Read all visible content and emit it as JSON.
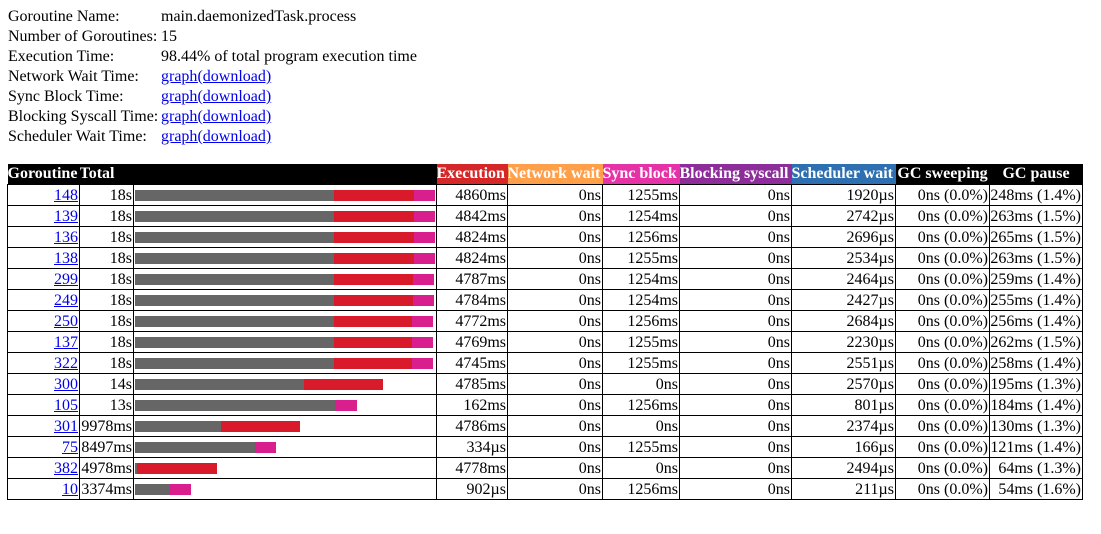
{
  "summary": {
    "rows": [
      {
        "label": "Goroutine Name:",
        "value": "main.daemonizedTask.process"
      },
      {
        "label": "Number of Goroutines:",
        "value": "15"
      },
      {
        "label": "Execution Time:",
        "value": "98.44% of total program execution time"
      },
      {
        "label": "Network Wait Time:",
        "link": "graph",
        "link2": "(download)"
      },
      {
        "label": "Sync Block Time:",
        "link": "graph",
        "link2": "(download)"
      },
      {
        "label": "Blocking Syscall Time:",
        "link": "graph",
        "link2": "(download)"
      },
      {
        "label": "Scheduler Wait Time:",
        "link": "graph",
        "link2": "(download)"
      }
    ]
  },
  "colors": {
    "header_bg": "#000000",
    "execution": "#d62728",
    "network_wait": "#ff9f4a",
    "sync_block": "#e532a7",
    "blocking_syscall": "#8c2d9a",
    "scheduler_wait": "#2d6fb0",
    "bar_gray": "#666666",
    "bar_red": "#d91a2b",
    "bar_pink": "#d91f8e"
  },
  "table": {
    "headers": {
      "goroutine": "Goroutine",
      "total": "Total",
      "execution": "Execution",
      "network_wait": "Network wait",
      "sync_block": "Sync block",
      "blocking_syscall": "Blocking syscall",
      "scheduler_wait": "Scheduler wait",
      "gc_sweeping": "GC sweeping",
      "gc_pause": "GC pause"
    },
    "rows": [
      {
        "id": "148",
        "total": "18s",
        "execution": "4860ms",
        "network": "0ns",
        "sync": "1255ms",
        "syscall": "0ns",
        "sched": "1920µs",
        "sweep": "0ns (0.0%)",
        "pause": "248ms (1.4%)",
        "total_frac": 1.0,
        "exec_frac": 0.267,
        "sync_frac": 0.069
      },
      {
        "id": "139",
        "total": "18s",
        "execution": "4842ms",
        "network": "0ns",
        "sync": "1254ms",
        "syscall": "0ns",
        "sched": "2742µs",
        "sweep": "0ns (0.0%)",
        "pause": "263ms (1.5%)",
        "total_frac": 1.0,
        "exec_frac": 0.267,
        "sync_frac": 0.069
      },
      {
        "id": "136",
        "total": "18s",
        "execution": "4824ms",
        "network": "0ns",
        "sync": "1256ms",
        "syscall": "0ns",
        "sched": "2696µs",
        "sweep": "0ns (0.0%)",
        "pause": "265ms (1.5%)",
        "total_frac": 1.0,
        "exec_frac": 0.267,
        "sync_frac": 0.069
      },
      {
        "id": "138",
        "total": "18s",
        "execution": "4824ms",
        "network": "0ns",
        "sync": "1255ms",
        "syscall": "0ns",
        "sched": "2534µs",
        "sweep": "0ns (0.0%)",
        "pause": "263ms (1.5%)",
        "total_frac": 1.0,
        "exec_frac": 0.267,
        "sync_frac": 0.069
      },
      {
        "id": "299",
        "total": "18s",
        "execution": "4787ms",
        "network": "0ns",
        "sync": "1254ms",
        "syscall": "0ns",
        "sched": "2464µs",
        "sweep": "0ns (0.0%)",
        "pause": "259ms (1.4%)",
        "total_frac": 0.997,
        "exec_frac": 0.264,
        "sync_frac": 0.07
      },
      {
        "id": "249",
        "total": "18s",
        "execution": "4784ms",
        "network": "0ns",
        "sync": "1254ms",
        "syscall": "0ns",
        "sched": "2427µs",
        "sweep": "0ns (0.0%)",
        "pause": "255ms (1.4%)",
        "total_frac": 0.997,
        "exec_frac": 0.264,
        "sync_frac": 0.07
      },
      {
        "id": "250",
        "total": "18s",
        "execution": "4772ms",
        "network": "0ns",
        "sync": "1256ms",
        "syscall": "0ns",
        "sched": "2684µs",
        "sweep": "0ns (0.0%)",
        "pause": "256ms (1.4%)",
        "total_frac": 0.993,
        "exec_frac": 0.262,
        "sync_frac": 0.069
      },
      {
        "id": "137",
        "total": "18s",
        "execution": "4769ms",
        "network": "0ns",
        "sync": "1255ms",
        "syscall": "0ns",
        "sched": "2230µs",
        "sweep": "0ns (0.0%)",
        "pause": "262ms (1.5%)",
        "total_frac": 0.993,
        "exec_frac": 0.262,
        "sync_frac": 0.069
      },
      {
        "id": "322",
        "total": "18s",
        "execution": "4745ms",
        "network": "0ns",
        "sync": "1255ms",
        "syscall": "0ns",
        "sched": "2551µs",
        "sweep": "0ns (0.0%)",
        "pause": "258ms (1.4%)",
        "total_frac": 0.993,
        "exec_frac": 0.26,
        "sync_frac": 0.07
      },
      {
        "id": "300",
        "total": "14s",
        "execution": "4785ms",
        "network": "0ns",
        "sync": "0ns",
        "syscall": "0ns",
        "sched": "2570µs",
        "sweep": "0ns (0.0%)",
        "pause": "195ms (1.3%)",
        "total_frac": 0.827,
        "exec_frac": 0.263,
        "sync_frac": 0.0
      },
      {
        "id": "105",
        "total": "13s",
        "execution": "162ms",
        "network": "0ns",
        "sync": "1256ms",
        "syscall": "0ns",
        "sched": "801µs",
        "sweep": "0ns (0.0%)",
        "pause": "184ms (1.4%)",
        "total_frac": 0.74,
        "exec_frac": 0.0,
        "sync_frac": 0.073
      },
      {
        "id": "301",
        "total": "9978ms",
        "execution": "4786ms",
        "network": "0ns",
        "sync": "0ns",
        "syscall": "0ns",
        "sched": "2374µs",
        "sweep": "0ns (0.0%)",
        "pause": "130ms (1.3%)",
        "total_frac": 0.55,
        "exec_frac": 0.263,
        "sync_frac": 0.0
      },
      {
        "id": "75",
        "total": "8497ms",
        "execution": "334µs",
        "network": "0ns",
        "sync": "1255ms",
        "syscall": "0ns",
        "sched": "166µs",
        "sweep": "0ns (0.0%)",
        "pause": "121ms (1.4%)",
        "total_frac": 0.47,
        "exec_frac": 0.0,
        "sync_frac": 0.07
      },
      {
        "id": "382",
        "total": "4978ms",
        "execution": "4778ms",
        "network": "0ns",
        "sync": "0ns",
        "syscall": "0ns",
        "sched": "2494µs",
        "sweep": "0ns (0.0%)",
        "pause": "64ms (1.3%)",
        "total_frac": 0.273,
        "exec_frac": 0.267,
        "sync_frac": 0.0
      },
      {
        "id": "10",
        "total": "3374ms",
        "execution": "902µs",
        "network": "0ns",
        "sync": "1256ms",
        "syscall": "0ns",
        "sched": "211µs",
        "sweep": "0ns (0.0%)",
        "pause": "54ms (1.6%)",
        "total_frac": 0.187,
        "exec_frac": 0.0,
        "sync_frac": 0.07
      }
    ]
  }
}
